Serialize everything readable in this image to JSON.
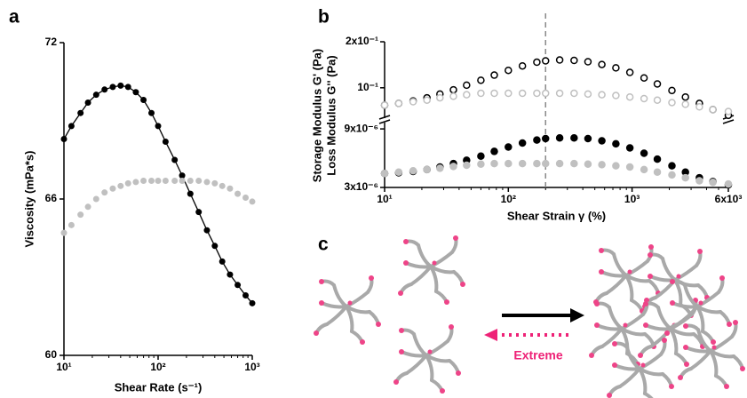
{
  "chart_data": [
    {
      "type": "line",
      "label": "a",
      "xlabel": "Shear Rate (s⁻¹)",
      "ylabel": "Viscosity (mPa*s)",
      "xlog": true,
      "xlim": [
        10,
        1000
      ],
      "xticks": [
        {
          "value": 10,
          "label": "10¹"
        },
        {
          "value": 100,
          "label": "10²"
        },
        {
          "value": 1000,
          "label": "10³"
        }
      ],
      "ylim": [
        60,
        72
      ],
      "yticks": [
        60,
        66,
        72
      ],
      "x": [
        10,
        12,
        15,
        18,
        22,
        27,
        33,
        40,
        48,
        58,
        70,
        85,
        100,
        120,
        150,
        180,
        220,
        270,
        330,
        400,
        480,
        580,
        700,
        850,
        1000
      ],
      "series": [
        {
          "color": "#000000",
          "line": true,
          "values": [
            68.3,
            68.8,
            69.3,
            69.7,
            70.0,
            70.2,
            70.3,
            70.35,
            70.3,
            70.1,
            69.8,
            69.3,
            68.8,
            68.2,
            67.5,
            66.9,
            66.2,
            65.5,
            64.8,
            64.2,
            63.6,
            63.1,
            62.7,
            62.3,
            62.0
          ]
        },
        {
          "color": "#c0c0c0",
          "line": false,
          "values": [
            64.7,
            65.0,
            65.4,
            65.7,
            66.0,
            66.25,
            66.4,
            66.5,
            66.6,
            66.65,
            66.7,
            66.7,
            66.7,
            66.7,
            66.7,
            66.7,
            66.7,
            66.7,
            66.65,
            66.6,
            66.5,
            66.4,
            66.2,
            66.05,
            65.9
          ]
        }
      ]
    },
    {
      "type": "scatter",
      "label": "b",
      "xlabel": "Shear Strain γ (%)",
      "ylabels": [
        "Storage Modulus G' (Pa)",
        "Loss Modulus G'' (Pa)"
      ],
      "xlog": true,
      "ylog": true,
      "xlim": [
        10,
        6000
      ],
      "xticks": [
        {
          "value": 10,
          "label": "10¹"
        },
        {
          "value": 100,
          "label": "10²"
        },
        {
          "value": 1000,
          "label": "10³"
        },
        {
          "value": 6000,
          "label": "6x10³"
        }
      ],
      "vline": 200,
      "segments": [
        {
          "ylim": [
            0.065,
            0.2
          ],
          "yticks": [
            {
              "value": 0.1,
              "label": "10⁻¹"
            },
            {
              "value": 0.2,
              "label": "2x10⁻¹"
            }
          ]
        },
        {
          "ylim": [
            3e-06,
            9.8e-06
          ],
          "yticks": [
            {
              "value": 3e-06,
              "label": "3x10⁻⁶"
            },
            {
              "value": 9e-06,
              "label": "9x10⁻⁶"
            }
          ]
        }
      ],
      "x": [
        10,
        13,
        17,
        22,
        28,
        36,
        46,
        60,
        77,
        100,
        130,
        170,
        200,
        260,
        340,
        440,
        570,
        740,
        960,
        1250,
        1600,
        2100,
        2700,
        3500,
        4500,
        6000
      ],
      "series": [
        {
          "color": "#000000",
          "segment": 0,
          "filled": false,
          "values": [
            0.077,
            0.079,
            0.082,
            0.086,
            0.091,
            0.097,
            0.104,
            0.112,
            0.121,
            0.13,
            0.139,
            0.147,
            0.15,
            0.152,
            0.151,
            0.148,
            0.142,
            0.135,
            0.126,
            0.116,
            0.106,
            0.096,
            0.087,
            0.079,
            0.072,
            0.066
          ]
        },
        {
          "color": "#c0c0c0",
          "segment": 0,
          "filled": false,
          "values": [
            0.077,
            0.079,
            0.081,
            0.083,
            0.086,
            0.088,
            0.09,
            0.092,
            0.092,
            0.092,
            0.092,
            0.092,
            0.092,
            0.092,
            0.092,
            0.091,
            0.09,
            0.089,
            0.087,
            0.085,
            0.083,
            0.08,
            0.078,
            0.075,
            0.072,
            0.07
          ]
        },
        {
          "color": "#000000",
          "segment": 1,
          "filled": true,
          "values": [
            3.9e-06,
            3.95e-06,
            4.05e-06,
            4.2e-06,
            4.4e-06,
            4.7e-06,
            5e-06,
            5.4e-06,
            5.9e-06,
            6.4e-06,
            6.9e-06,
            7.3e-06,
            7.5e-06,
            7.6e-06,
            7.6e-06,
            7.5e-06,
            7.2e-06,
            6.8e-06,
            6.3e-06,
            5.7e-06,
            5.1e-06,
            4.5e-06,
            4e-06,
            3.6e-06,
            3.35e-06,
            3.15e-06
          ]
        },
        {
          "color": "#c0c0c0",
          "segment": 1,
          "filled": true,
          "values": [
            3.9e-06,
            4e-06,
            4.1e-06,
            4.2e-06,
            4.3e-06,
            4.45e-06,
            4.55e-06,
            4.65e-06,
            4.7e-06,
            4.7e-06,
            4.7e-06,
            4.7e-06,
            4.7e-06,
            4.7e-06,
            4.7e-06,
            4.65e-06,
            4.6e-06,
            4.5e-06,
            4.4e-06,
            4.2e-06,
            4e-06,
            3.8e-06,
            3.6e-06,
            3.4e-06,
            3.3e-06,
            3.2e-06
          ]
        }
      ]
    }
  ],
  "diagram": {
    "label": "c",
    "arrow_text": "Extreme"
  }
}
